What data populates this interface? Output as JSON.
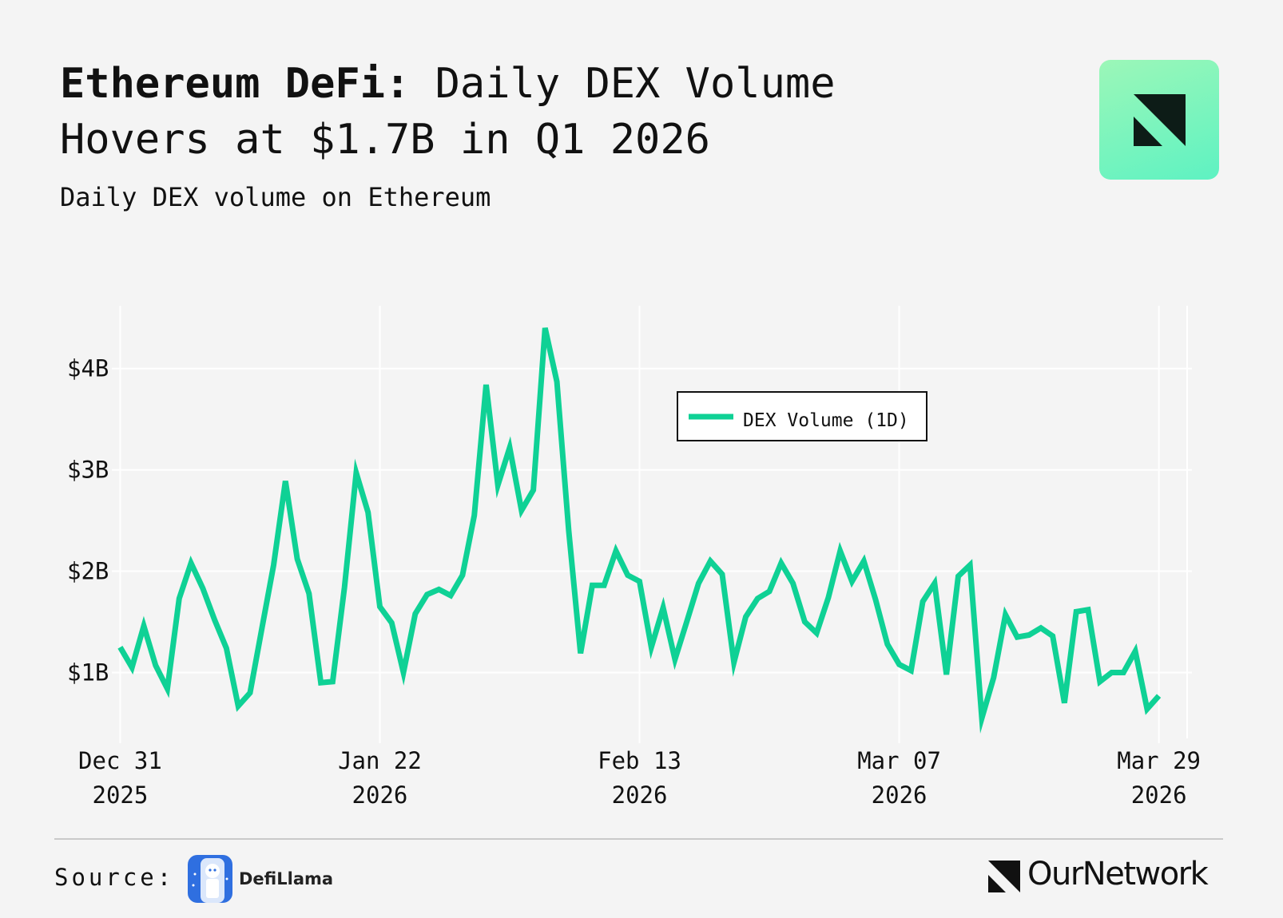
{
  "header": {
    "title_bold": "Ethereum DeFi:",
    "title_rest": " Daily DEX Volume Hovers at $1.7B in Q1 2026",
    "subtitle": "Daily DEX volume on Ethereum"
  },
  "footer": {
    "source_label": "Source:",
    "source_name": "DefiLlama",
    "brand": "OurNetwork"
  },
  "colors": {
    "line": "#0fd195",
    "grid": "#ffffff",
    "background": "#f4f4f4",
    "footer_rule": "#c9c9c9"
  },
  "chart_data": {
    "type": "line",
    "title": "Daily DEX volume on Ethereum",
    "xlabel": "",
    "ylabel": "",
    "y_unit": "billion USD",
    "ylim": [
      0.35,
      4.62
    ],
    "xlim": [
      -0.3,
      90.8
    ],
    "grid": true,
    "legend_position": "top-center",
    "y_ticks": [
      {
        "value": 1,
        "label": "$1B"
      },
      {
        "value": 2,
        "label": "$2B"
      },
      {
        "value": 3,
        "label": "$3B"
      },
      {
        "value": 4,
        "label": "$4B"
      }
    ],
    "x_ticks": [
      {
        "day": 0,
        "line1": "Dec 31",
        "line2": "2025"
      },
      {
        "day": 22,
        "line1": "Jan 22",
        "line2": "2026"
      },
      {
        "day": 44,
        "line1": "Feb 13",
        "line2": "2026"
      },
      {
        "day": 66,
        "line1": "Mar 07",
        "line2": "2026"
      },
      {
        "day": 88,
        "line1": "Mar 29",
        "line2": "2026"
      }
    ],
    "series": [
      {
        "name": "DEX Volume (1D)",
        "start_date": "2025-12-31",
        "step_days": 1,
        "values": [
          1.25,
          1.05,
          1.46,
          1.07,
          0.84,
          1.73,
          2.08,
          1.83,
          1.52,
          1.24,
          0.67,
          0.8,
          1.43,
          2.06,
          2.89,
          2.12,
          1.78,
          0.9,
          0.91,
          1.84,
          2.97,
          2.58,
          1.65,
          1.49,
          1.0,
          1.58,
          1.77,
          1.82,
          1.76,
          1.96,
          2.55,
          3.84,
          2.85,
          3.22,
          2.6,
          2.8,
          4.4,
          3.87,
          2.4,
          1.19,
          1.86,
          1.86,
          2.2,
          1.96,
          1.9,
          1.25,
          1.64,
          1.13,
          1.5,
          1.88,
          2.1,
          1.97,
          1.1,
          1.55,
          1.73,
          1.8,
          2.08,
          1.88,
          1.5,
          1.39,
          1.74,
          2.2,
          1.9,
          2.1,
          1.72,
          1.28,
          1.08,
          1.02,
          1.7,
          1.88,
          0.98,
          1.95,
          2.06,
          0.55,
          0.95,
          1.57,
          1.35,
          1.37,
          1.44,
          1.36,
          0.7,
          1.6,
          1.62,
          0.91,
          1.0,
          1.0,
          1.21,
          0.64,
          0.77
        ]
      }
    ]
  }
}
